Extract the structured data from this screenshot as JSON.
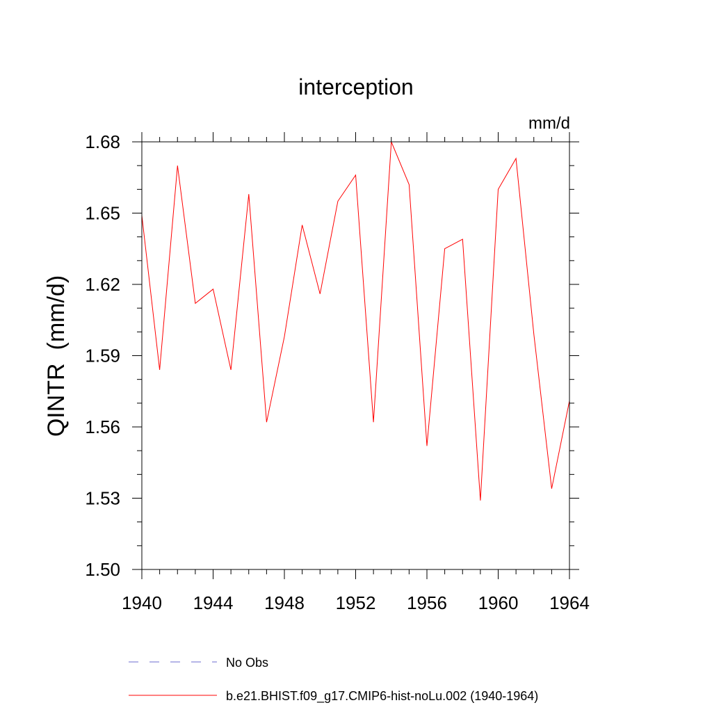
{
  "chart_data": {
    "type": "line",
    "title": "interception",
    "units_label": "mm/d",
    "ylabel": "QINTR  (mm/d)",
    "xlabel": "",
    "xlim": [
      1940,
      1964
    ],
    "ylim": [
      1.5,
      1.68
    ],
    "xticks": [
      "1940",
      "1944",
      "1948",
      "1952",
      "1956",
      "1960",
      "1964"
    ],
    "yticks": [
      "1.50",
      "1.53",
      "1.56",
      "1.59",
      "1.62",
      "1.65",
      "1.68"
    ],
    "grid": false,
    "legend_position": "bottom",
    "series": [
      {
        "name": "No Obs",
        "style": "dashed",
        "color": "#6b6bcf",
        "x": [],
        "values": []
      },
      {
        "name": "b.e21.BHIST.f09_g17.CMIP6-hist-noLu.002 (1940-1964)",
        "style": "solid",
        "color": "#ff0000",
        "x": [
          1940,
          1941,
          1942,
          1943,
          1944,
          1945,
          1946,
          1947,
          1948,
          1949,
          1950,
          1951,
          1952,
          1953,
          1954,
          1955,
          1956,
          1957,
          1958,
          1959,
          1960,
          1961,
          1962,
          1963,
          1964
        ],
        "values": [
          1.649,
          1.584,
          1.67,
          1.612,
          1.618,
          1.584,
          1.658,
          1.562,
          1.598,
          1.645,
          1.616,
          1.655,
          1.666,
          1.562,
          1.68,
          1.662,
          1.552,
          1.635,
          1.639,
          1.529,
          1.66,
          1.673,
          1.599,
          1.534,
          1.571
        ]
      }
    ]
  }
}
